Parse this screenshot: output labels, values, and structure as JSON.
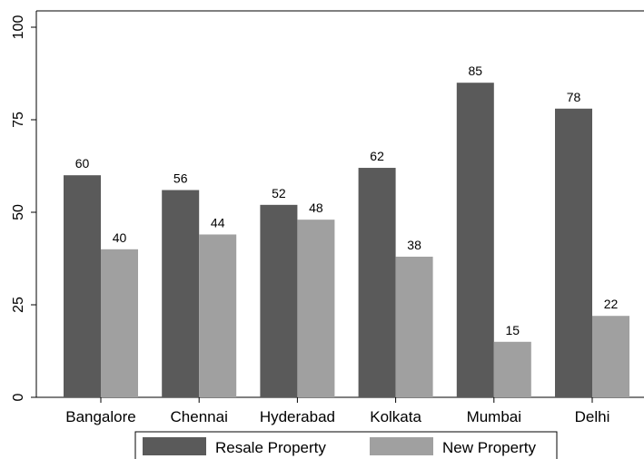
{
  "chart_data": {
    "type": "bar",
    "categories": [
      "Bangalore",
      "Chennai",
      "Hyderabad",
      "Kolkata",
      "Mumbai",
      "Delhi"
    ],
    "series": [
      {
        "name": "Resale Property",
        "values": [
          60,
          56,
          52,
          62,
          85,
          78
        ],
        "color": "#5a5a5a"
      },
      {
        "name": "New Property",
        "values": [
          40,
          44,
          48,
          38,
          15,
          22
        ],
        "color": "#a0a0a0"
      }
    ],
    "data_labels": [
      [
        "60",
        "56",
        "52",
        "62",
        "85",
        "78"
      ],
      [
        "40",
        "44",
        "48",
        "38",
        "15",
        "22"
      ]
    ],
    "yticks": [
      0,
      25,
      50,
      75,
      100
    ],
    "ylim": [
      0,
      100
    ],
    "title": "",
    "xlabel": "",
    "ylabel": "",
    "grid": false,
    "legend_position": "bottom"
  }
}
